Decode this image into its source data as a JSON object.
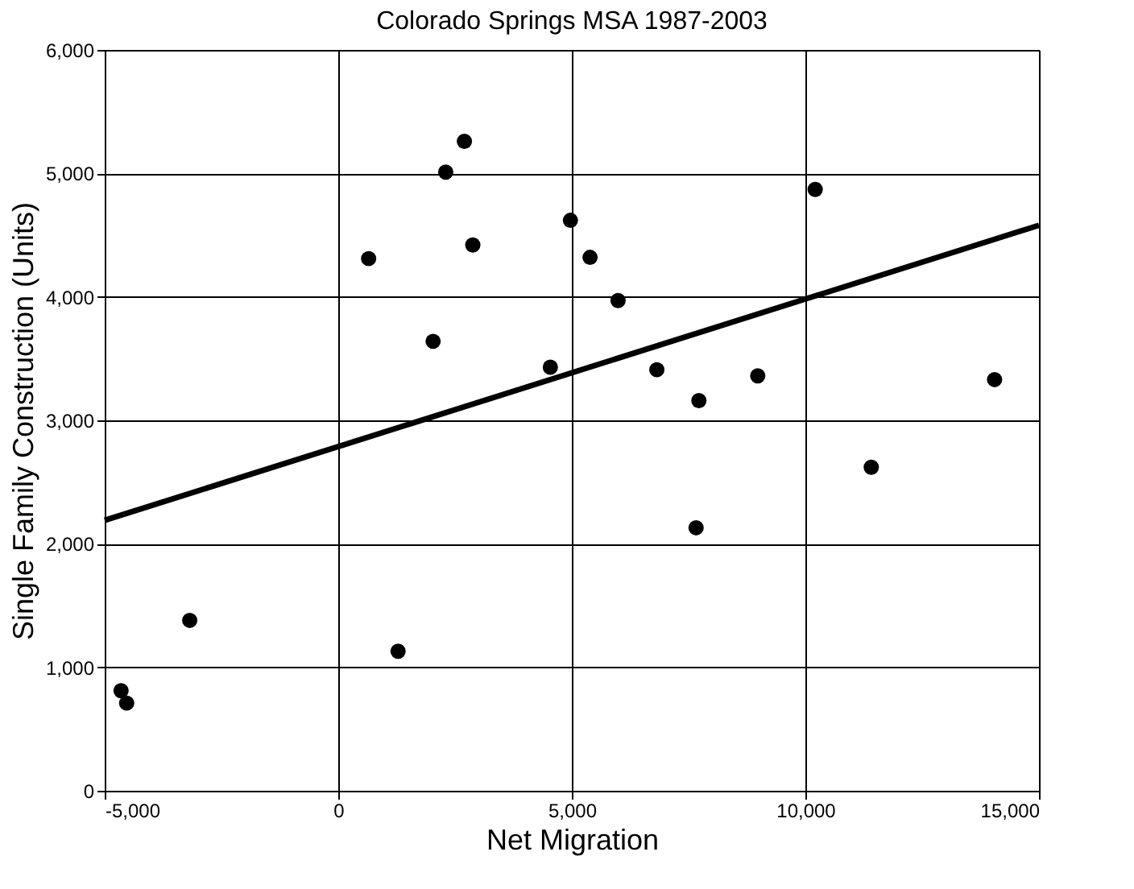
{
  "chart_data": {
    "type": "scatter",
    "title": "Colorado Springs MSA 1987-2003",
    "xlabel": "Net Migration",
    "ylabel": "Single Family Construction (Units)",
    "xlim": [
      -5000,
      15000
    ],
    "xticks": [
      {
        "value": -5000,
        "label": "-5,000"
      },
      0,
      {
        "value": 5000,
        "label": "5,000"
      },
      {
        "value": 10000,
        "label": "10,000"
      },
      {
        "value": 15000,
        "label": "15,000"
      }
    ],
    "ylim": [
      0,
      6000
    ],
    "yticks": [
      0,
      {
        "value": 1000,
        "label": "1,000"
      },
      {
        "value": 2000,
        "label": "2,000"
      },
      {
        "value": 3000,
        "label": "3,000"
      },
      {
        "value": 4000,
        "label": "4,000"
      },
      {
        "value": 5000,
        "label": "5,000"
      },
      {
        "value": 6000,
        "label": "6,000"
      }
    ],
    "grid": true,
    "series": [
      {
        "color": "#000000",
        "marker": "circle",
        "x": [
          -4650,
          -4530,
          -3180,
          1280,
          650,
          2300,
          2700,
          2880,
          4970,
          5390,
          5990,
          2030,
          4540,
          10210,
          6820,
          7720,
          8980,
          14050,
          11410,
          7660
        ],
        "values": [
          810,
          710,
          1380,
          1130,
          4310,
          5010,
          5260,
          4420,
          4620,
          4320,
          3970,
          3640,
          3430,
          4870,
          3410,
          3160,
          3360,
          3330,
          2620,
          2130
        ]
      },
      {
        "type": "line",
        "color": "#000000",
        "marker": "none",
        "line_style": "solid",
        "x": [
          -5000,
          15000
        ],
        "values": [
          2190,
          4580
        ]
      }
    ]
  }
}
